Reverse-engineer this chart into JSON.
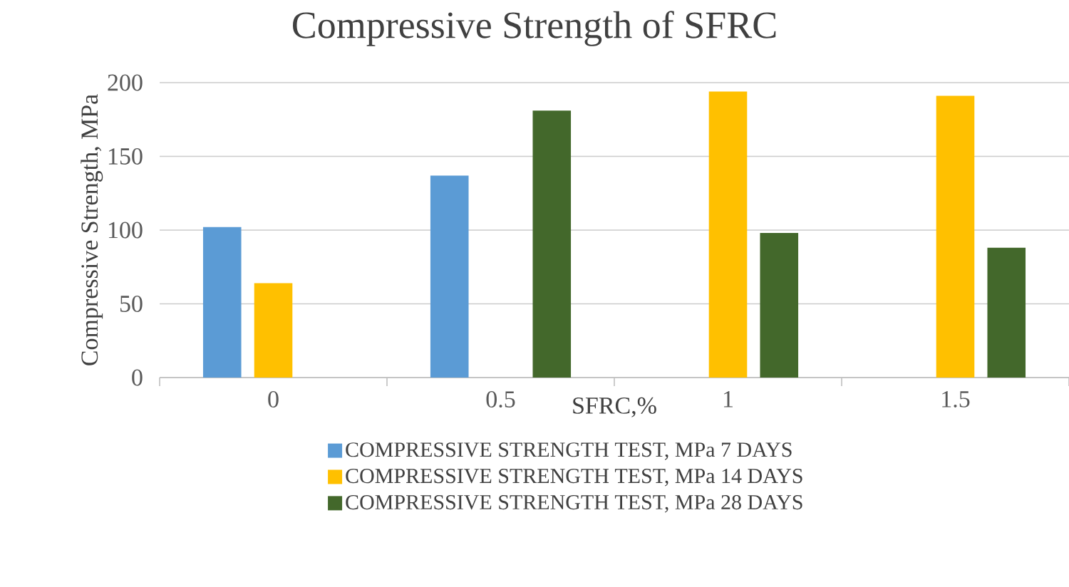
{
  "chart_data": {
    "type": "bar",
    "title": "Compressive Strength of SFRC",
    "xlabel": "SFRC,%",
    "ylabel": "Compressive Strength, MPa",
    "categories": [
      "0",
      "0.5",
      "1",
      "1.5"
    ],
    "series": [
      {
        "name": "COMPRESSIVE STRENGTH TEST, MPa 7 DAYS",
        "color": "#5b9bd5",
        "values": [
          102,
          137,
          null,
          null
        ]
      },
      {
        "name": "COMPRESSIVE STRENGTH TEST, MPa 14 DAYS",
        "color": "#ffc000",
        "values": [
          64,
          null,
          194,
          191
        ]
      },
      {
        "name": "COMPRESSIVE STRENGTH TEST, MPa 28 DAYS",
        "color": "#43682b",
        "values": [
          null,
          181,
          98,
          88
        ]
      }
    ],
    "ylim": [
      0,
      200
    ],
    "yticks": [
      0,
      50,
      100,
      150,
      200
    ],
    "grid": "y",
    "legend": "bottom"
  }
}
